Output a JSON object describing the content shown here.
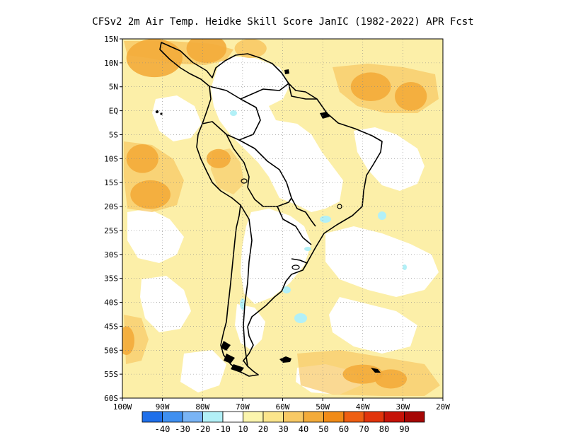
{
  "chart_data": {
    "type": "heatmap",
    "title": "CFSv2  2m Air Temp. Heidke Skill Score JanIC (1982-2022) APR Fcst",
    "region": "South America",
    "x_axis": {
      "range": [
        -100,
        -20
      ],
      "ticks": [
        -100,
        -90,
        -80,
        -70,
        -60,
        -50,
        -40,
        -30,
        -20
      ],
      "tick_labels": [
        "100W",
        "90W",
        "80W",
        "70W",
        "60W",
        "50W",
        "40W",
        "30W",
        "20W"
      ]
    },
    "y_axis": {
      "range": [
        -60,
        15
      ],
      "ticks": [
        15,
        10,
        5,
        0,
        -5,
        -10,
        -15,
        -20,
        -25,
        -30,
        -35,
        -40,
        -45,
        -50,
        -55,
        -60
      ],
      "tick_labels": [
        "15N",
        "10N",
        "5N",
        "EQ",
        "5S",
        "10S",
        "15S",
        "20S",
        "25S",
        "30S",
        "35S",
        "40S",
        "45S",
        "50S",
        "55S",
        "60S"
      ]
    },
    "grid": "dotted",
    "colorbar": {
      "colors": [
        "#1f6fea",
        "#3f8ff0",
        "#79b4f5",
        "#b2f0f7",
        "#ffffff",
        "#fbf5ad",
        "#fbe58b",
        "#f8c965",
        "#f3ab3a",
        "#f18b17",
        "#ef5f12",
        "#e2340b",
        "#c61308",
        "#a60705"
      ],
      "labels": [
        "-40",
        "-30",
        "-20",
        "-10",
        "10",
        "20",
        "30",
        "40",
        "50",
        "60",
        "70",
        "80",
        "90"
      ]
    },
    "zones": [
      {
        "name": "caribbean-nw",
        "lon": -92,
        "lat": 11,
        "rx": 7,
        "ry": 4,
        "level": 40
      },
      {
        "name": "caribbean-n",
        "lon": -79,
        "lat": 13,
        "rx": 5,
        "ry": 3,
        "level": 40
      },
      {
        "name": "caribbean-central",
        "lon": -68,
        "lat": 13,
        "rx": 4,
        "ry": 2,
        "level": 30
      },
      {
        "name": "pacific-west-10s",
        "lon": -95,
        "lat": -10,
        "rx": 4,
        "ry": 3,
        "level": 40
      },
      {
        "name": "pacific-west-17s",
        "lon": -93,
        "lat": -17.5,
        "rx": 5,
        "ry": 3,
        "level": 40
      },
      {
        "name": "peru-andes",
        "lon": -76,
        "lat": -10,
        "rx": 3,
        "ry": 2,
        "level": 40
      },
      {
        "name": "atlantic-ne",
        "lon": -38,
        "lat": 5,
        "rx": 5,
        "ry": 3,
        "level": 40
      },
      {
        "name": "atlantic-ne-far",
        "lon": -28,
        "lat": 3,
        "rx": 4,
        "ry": 3,
        "level": 40
      },
      {
        "name": "pacific-sw-48s",
        "lon": -99,
        "lat": -48,
        "rx": 2,
        "ry": 3,
        "level": 40
      },
      {
        "name": "south-atlantic-55s",
        "lon": -40,
        "lat": -55,
        "rx": 5,
        "ry": 2,
        "level": 40
      },
      {
        "name": "south-atlantic-56s",
        "lon": -33,
        "lat": -56,
        "rx": 4,
        "ry": 2,
        "level": 40
      }
    ]
  }
}
